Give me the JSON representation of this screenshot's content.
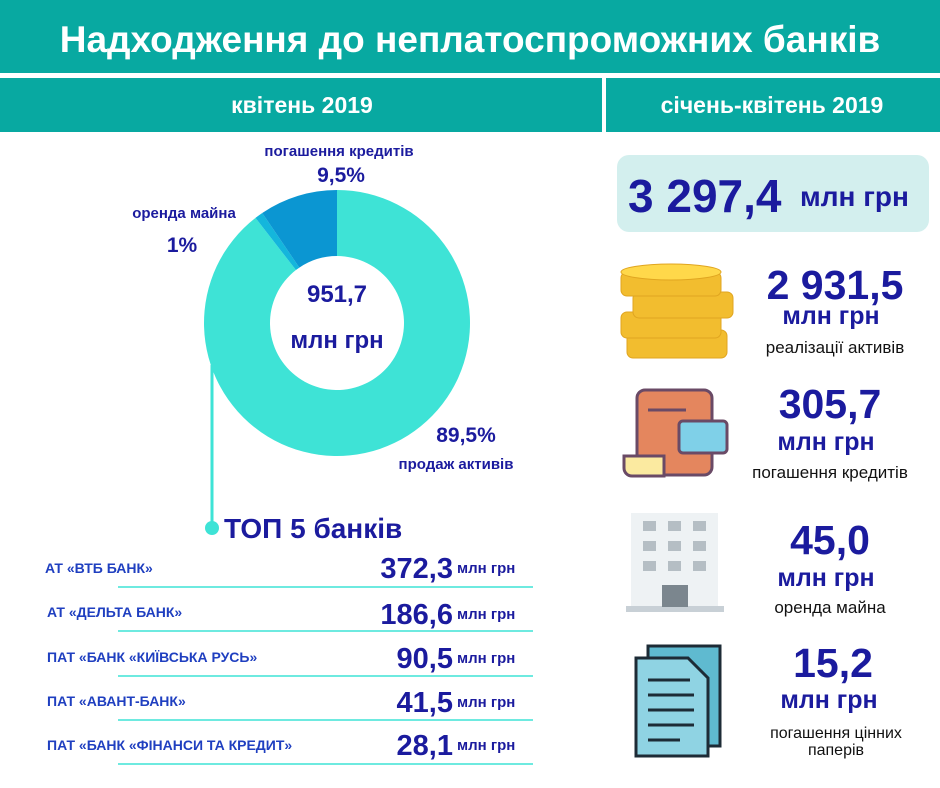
{
  "header": {
    "title": "Надходження до неплатоспроможних банків",
    "left_period": "квітень 2019",
    "right_period": "січень-квітень 2019"
  },
  "chart_data": {
    "type": "donut",
    "categories": [
      "продаж активів",
      "оренда майна",
      "погашення кредитів"
    ],
    "values": [
      89.5,
      1,
      9.5
    ],
    "value_labels": [
      "89,5%",
      "1%",
      "9,5%"
    ],
    "colors": [
      "#3ee3d6",
      "#14b6dc",
      "#0b96d2"
    ],
    "center_value": "951,7",
    "center_unit": "млн грн"
  },
  "top_banks": {
    "title": "ТОП 5 банків",
    "unit": "млн грн",
    "rows": [
      [
        "АТ «ВТБ БАНК»",
        "372,3"
      ],
      [
        "АТ «ДЕЛЬТА БАНК»",
        "186,6"
      ],
      [
        "ПАТ «БАНК «КИЇВСЬКА РУСЬ»",
        "90,5"
      ],
      [
        "ПАТ «АВАНТ-БАНК»",
        "41,5"
      ],
      [
        "ПАТ «БАНК «ФІНАНСИ ТА КРЕДИТ»",
        "28,1"
      ]
    ]
  },
  "summary": {
    "total": "3 297,4",
    "unit": "млн грн",
    "items": [
      {
        "value": "2 931,5",
        "label": "реалізації активів"
      },
      {
        "value": "305,7",
        "label": "погашення кредитів"
      },
      {
        "value": "45,0",
        "label": "оренда майна"
      },
      {
        "value": "15,2",
        "label": "погашення цінних паперів"
      }
    ]
  }
}
